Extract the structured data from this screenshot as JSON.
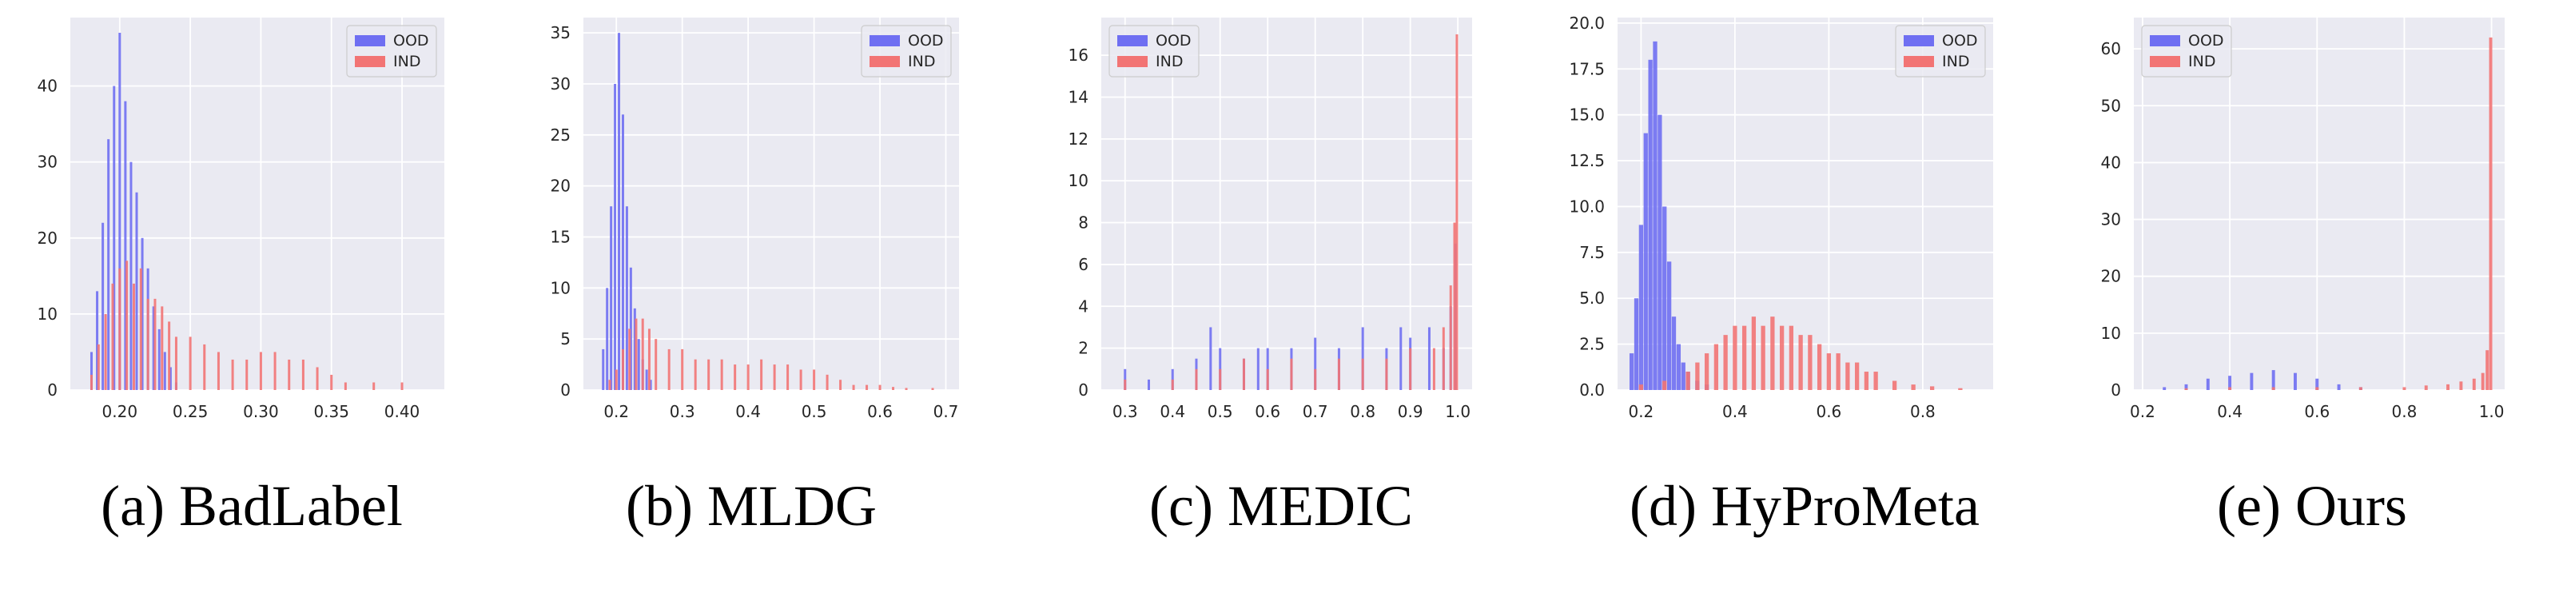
{
  "colors": {
    "ood": "#6f6ff2",
    "ind": "#f27474",
    "overlap": "#b8326a",
    "panel_bg": "#eaeaf2",
    "grid": "#ffffff",
    "text": "#262626"
  },
  "chart_data": [
    {
      "type": "histogram",
      "caption": "(a) BadLabel",
      "legend_position": "top-right",
      "grid": true,
      "xlim": [
        0.165,
        0.43
      ],
      "ylim": [
        0,
        49
      ],
      "xticks": [
        0.2,
        0.25,
        0.3,
        0.35,
        0.4
      ],
      "xtick_labels": [
        "0.20",
        "0.25",
        "0.30",
        "0.35",
        "0.40"
      ],
      "yticks": [
        0,
        10,
        20,
        30,
        40
      ],
      "ytick_labels": [
        "0",
        "10",
        "20",
        "30",
        "40"
      ],
      "series": [
        {
          "name": "OOD",
          "x": [
            0.18,
            0.184,
            0.188,
            0.192,
            0.196,
            0.2,
            0.204,
            0.208,
            0.212,
            0.216,
            0.22,
            0.224,
            0.228,
            0.232,
            0.236,
            0.24
          ],
          "values": [
            5,
            13,
            22,
            33,
            40,
            47,
            38,
            30,
            26,
            20,
            16,
            11,
            8,
            5,
            3,
            1
          ]
        },
        {
          "name": "IND",
          "x": [
            0.18,
            0.185,
            0.19,
            0.195,
            0.2,
            0.205,
            0.21,
            0.215,
            0.22,
            0.225,
            0.23,
            0.235,
            0.24,
            0.25,
            0.26,
            0.27,
            0.28,
            0.29,
            0.3,
            0.31,
            0.32,
            0.33,
            0.34,
            0.35,
            0.36,
            0.38,
            0.4
          ],
          "values": [
            2,
            6,
            10,
            14,
            16,
            17,
            14,
            16,
            12,
            12,
            11,
            9,
            7,
            7,
            6,
            5,
            4,
            4,
            5,
            5,
            4,
            4,
            3,
            2,
            1,
            1,
            1
          ]
        }
      ]
    },
    {
      "type": "histogram",
      "caption": "(b) MLDG",
      "legend_position": "top-right",
      "grid": true,
      "xlim": [
        0.15,
        0.72
      ],
      "ylim": [
        0,
        36.5
      ],
      "xticks": [
        0.2,
        0.3,
        0.4,
        0.5,
        0.6,
        0.7
      ],
      "xtick_labels": [
        "0.2",
        "0.3",
        "0.4",
        "0.5",
        "0.6",
        "0.7"
      ],
      "yticks": [
        0,
        5,
        10,
        15,
        20,
        25,
        30,
        35
      ],
      "ytick_labels": [
        "0",
        "5",
        "10",
        "15",
        "20",
        "25",
        "30",
        "35"
      ],
      "series": [
        {
          "name": "OOD",
          "x": [
            0.18,
            0.186,
            0.192,
            0.198,
            0.204,
            0.21,
            0.216,
            0.222,
            0.228,
            0.234,
            0.24,
            0.246,
            0.252
          ],
          "values": [
            4,
            10,
            18,
            30,
            35,
            27,
            18,
            12,
            8,
            5,
            3,
            2,
            1
          ]
        },
        {
          "name": "IND",
          "x": [
            0.19,
            0.2,
            0.21,
            0.22,
            0.23,
            0.24,
            0.25,
            0.26,
            0.28,
            0.3,
            0.32,
            0.34,
            0.36,
            0.38,
            0.4,
            0.42,
            0.44,
            0.46,
            0.48,
            0.5,
            0.52,
            0.54,
            0.56,
            0.58,
            0.6,
            0.62,
            0.64,
            0.68
          ],
          "values": [
            1,
            2,
            4,
            6,
            7,
            7,
            6,
            5,
            4,
            4,
            3,
            3,
            3,
            2.5,
            2.5,
            3,
            2.5,
            2.5,
            2,
            2,
            1.5,
            1,
            0.5,
            0.5,
            0.5,
            0.3,
            0.2,
            0.2
          ]
        }
      ]
    },
    {
      "type": "histogram",
      "caption": "(c) MEDIC",
      "legend_position": "top-left",
      "grid": true,
      "xlim": [
        0.25,
        1.03
      ],
      "ylim": [
        0,
        17.8
      ],
      "xticks": [
        0.3,
        0.4,
        0.5,
        0.6,
        0.7,
        0.8,
        0.9,
        1.0
      ],
      "xtick_labels": [
        "0.3",
        "0.4",
        "0.5",
        "0.6",
        "0.7",
        "0.8",
        "0.9",
        "1.0"
      ],
      "yticks": [
        0,
        2,
        4,
        6,
        8,
        10,
        12,
        14,
        16
      ],
      "ytick_labels": [
        "0",
        "2",
        "4",
        "6",
        "8",
        "10",
        "12",
        "14",
        "16"
      ],
      "series": [
        {
          "name": "OOD",
          "x": [
            0.3,
            0.35,
            0.4,
            0.45,
            0.48,
            0.5,
            0.55,
            0.58,
            0.6,
            0.65,
            0.7,
            0.75,
            0.8,
            0.85,
            0.88,
            0.9,
            0.94,
            0.97,
            0.985,
            0.995
          ],
          "values": [
            1,
            0.5,
            1,
            1.5,
            3,
            2,
            1.5,
            2,
            2,
            2,
            2.5,
            2,
            3,
            2,
            3,
            2.5,
            3,
            2,
            4,
            7
          ]
        },
        {
          "name": "IND",
          "x": [
            0.3,
            0.4,
            0.45,
            0.5,
            0.55,
            0.6,
            0.65,
            0.7,
            0.75,
            0.8,
            0.85,
            0.9,
            0.95,
            0.97,
            0.985,
            0.993,
            0.998
          ],
          "values": [
            0.5,
            0.5,
            1,
            1,
            1.5,
            1,
            1.5,
            1,
            1.5,
            1.5,
            1.5,
            2,
            2,
            3,
            5,
            8,
            17
          ]
        }
      ]
    },
    {
      "type": "histogram",
      "caption": "(d) HyProMeta",
      "legend_position": "top-right",
      "grid": true,
      "xlim": [
        0.15,
        0.95
      ],
      "ylim": [
        0,
        20.3
      ],
      "xticks": [
        0.2,
        0.4,
        0.6,
        0.8
      ],
      "xtick_labels": [
        "0.2",
        "0.4",
        "0.6",
        "0.8"
      ],
      "yticks": [
        0,
        2.5,
        5,
        7.5,
        10,
        12.5,
        15,
        17.5,
        20
      ],
      "ytick_labels": [
        "0.0",
        "2.5",
        "5.0",
        "7.5",
        "10.0",
        "12.5",
        "15.0",
        "17.5",
        "20.0"
      ],
      "series": [
        {
          "name": "OOD",
          "x": [
            0.18,
            0.19,
            0.2,
            0.21,
            0.22,
            0.23,
            0.24,
            0.25,
            0.26,
            0.27,
            0.28,
            0.29,
            0.3,
            0.32,
            0.34
          ],
          "values": [
            2,
            5,
            9,
            14,
            18,
            19,
            15,
            10,
            7,
            4,
            2.5,
            1.5,
            1,
            0.5,
            0.3
          ]
        },
        {
          "name": "IND",
          "x": [
            0.2,
            0.25,
            0.3,
            0.32,
            0.34,
            0.36,
            0.38,
            0.4,
            0.42,
            0.44,
            0.46,
            0.48,
            0.5,
            0.52,
            0.54,
            0.56,
            0.58,
            0.6,
            0.62,
            0.64,
            0.66,
            0.68,
            0.7,
            0.74,
            0.78,
            0.82,
            0.88
          ],
          "values": [
            0.3,
            0.5,
            1,
            1.5,
            2,
            2.5,
            3,
            3.5,
            3.5,
            4,
            3.5,
            4,
            3.5,
            3.5,
            3,
            3,
            2.5,
            2,
            2,
            1.5,
            1.5,
            1,
            1,
            0.5,
            0.3,
            0.2,
            0.1
          ]
        }
      ]
    },
    {
      "type": "histogram",
      "caption": "(e) Ours",
      "legend_position": "top-left",
      "grid": true,
      "xlim": [
        0.18,
        1.03
      ],
      "ylim": [
        0,
        65.5
      ],
      "xticks": [
        0.2,
        0.4,
        0.6,
        0.8,
        1.0
      ],
      "xtick_labels": [
        "0.2",
        "0.4",
        "0.6",
        "0.8",
        "1.0"
      ],
      "yticks": [
        0,
        10,
        20,
        30,
        40,
        50,
        60
      ],
      "ytick_labels": [
        "0",
        "10",
        "20",
        "30",
        "40",
        "50",
        "60"
      ],
      "series": [
        {
          "name": "OOD",
          "x": [
            0.25,
            0.3,
            0.35,
            0.4,
            0.45,
            0.5,
            0.55,
            0.6,
            0.65,
            0.7
          ],
          "values": [
            0.5,
            1,
            2,
            2.5,
            3,
            3.5,
            3,
            2,
            1,
            0.5
          ]
        },
        {
          "name": "IND",
          "x": [
            0.3,
            0.4,
            0.5,
            0.6,
            0.7,
            0.8,
            0.85,
            0.9,
            0.93,
            0.96,
            0.98,
            0.99,
            0.998
          ],
          "values": [
            0.3,
            0.5,
            0.5,
            0.5,
            0.5,
            0.5,
            0.8,
            1,
            1.5,
            2,
            3,
            7,
            62
          ]
        }
      ]
    }
  ]
}
